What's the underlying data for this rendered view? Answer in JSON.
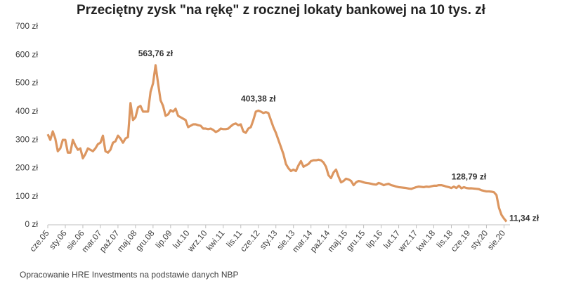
{
  "chart_data": {
    "type": "line",
    "title": "Przeciętny zysk \"na rękę\" z rocznej lokaty bankowej na 10 tys. zł",
    "source": "Opracowanie HRE Investments na podstawie danych NBP",
    "color": "#dc9660",
    "categories": [
      "cze.05",
      null,
      null,
      null,
      null,
      null,
      null,
      "sty.06",
      null,
      null,
      null,
      null,
      null,
      null,
      "sie.06",
      null,
      null,
      null,
      null,
      null,
      null,
      "mar.07",
      null,
      null,
      null,
      null,
      null,
      null,
      "paź.07",
      null,
      null,
      null,
      null,
      null,
      null,
      "maj.08",
      null,
      null,
      null,
      null,
      null,
      null,
      "gru.08",
      null,
      null,
      null,
      null,
      null,
      null,
      "lip.09",
      null,
      null,
      null,
      null,
      null,
      null,
      "lut.10",
      null,
      null,
      null,
      null,
      null,
      null,
      "wrz.10",
      null,
      null,
      null,
      null,
      null,
      null,
      "kwi.11",
      null,
      null,
      null,
      null,
      null,
      null,
      "lis.11",
      null,
      null,
      null,
      null,
      null,
      null,
      "cze.12",
      null,
      null,
      null,
      null,
      null,
      null,
      "sty.13",
      null,
      null,
      null,
      null,
      null,
      null,
      "sie.13",
      null,
      null,
      null,
      null,
      null,
      null,
      "mar.14",
      null,
      null,
      null,
      null,
      null,
      null,
      "paź.14",
      null,
      null,
      null,
      null,
      null,
      null,
      "maj.15",
      null,
      null,
      null,
      null,
      null,
      null,
      "gru.15",
      null,
      null,
      null,
      null,
      null,
      null,
      "lip.16",
      null,
      null,
      null,
      null,
      null,
      null,
      "lut.17",
      null,
      null,
      null,
      null,
      null,
      null,
      "wrz.17",
      null,
      null,
      null,
      null,
      null,
      null,
      "kwi.18",
      null,
      null,
      null,
      null,
      null,
      null,
      "lis.18",
      null,
      null,
      null,
      null,
      null,
      null,
      "cze.19",
      null,
      null,
      null,
      null,
      null,
      null,
      "sty.20",
      null,
      null,
      null,
      null,
      null,
      null,
      "sie.20",
      null
    ],
    "values": [
      320,
      300,
      330,
      305,
      260,
      270,
      300,
      300,
      255,
      255,
      300,
      280,
      265,
      270,
      235,
      250,
      270,
      265,
      260,
      270,
      285,
      290,
      315,
      260,
      255,
      265,
      290,
      295,
      315,
      305,
      290,
      305,
      310,
      430,
      370,
      380,
      415,
      420,
      400,
      400,
      400,
      470,
      500,
      563.76,
      500,
      440,
      420,
      385,
      390,
      405,
      400,
      410,
      385,
      380,
      375,
      370,
      345,
      350,
      355,
      355,
      352,
      350,
      340,
      340,
      338,
      340,
      335,
      328,
      332,
      340,
      338,
      338,
      340,
      348,
      355,
      358,
      352,
      355,
      330,
      325,
      340,
      345,
      370,
      400,
      403.38,
      400,
      395,
      398,
      395,
      370,
      345,
      325,
      300,
      275,
      250,
      215,
      200,
      190,
      195,
      190,
      210,
      225,
      205,
      210,
      215,
      225,
      228,
      228,
      230,
      228,
      220,
      205,
      175,
      165,
      185,
      195,
      170,
      150,
      155,
      163,
      160,
      155,
      140,
      150,
      155,
      153,
      150,
      148,
      147,
      145,
      143,
      142,
      148,
      145,
      140,
      143,
      145,
      140,
      138,
      135,
      133,
      132,
      131,
      130,
      128,
      127,
      130,
      133,
      135,
      134,
      133,
      135,
      134,
      136,
      138,
      138,
      140,
      140,
      138,
      135,
      133,
      130,
      135,
      130,
      138,
      129,
      133,
      130,
      128.79,
      129,
      128,
      127,
      126,
      122,
      120,
      118,
      118,
      117,
      115,
      105,
      60,
      35,
      22,
      11.34
    ],
    "value_labels": [
      null,
      null,
      null,
      null,
      null,
      null,
      null,
      null,
      null,
      null,
      null,
      null,
      null,
      null,
      null,
      null,
      null,
      null,
      null,
      null,
      null,
      null,
      null,
      null,
      null,
      null,
      null,
      null,
      null,
      null,
      null,
      null,
      null,
      null,
      null,
      null,
      null,
      null,
      null,
      null,
      null,
      null,
      null,
      "563,76 zł",
      null,
      null,
      null,
      null,
      null,
      null,
      null,
      null,
      null,
      null,
      null,
      null,
      null,
      null,
      null,
      null,
      null,
      null,
      null,
      null,
      null,
      null,
      null,
      null,
      null,
      null,
      null,
      null,
      null,
      null,
      null,
      null,
      null,
      null,
      null,
      null,
      null,
      null,
      null,
      null,
      "403,38 zł",
      null,
      null,
      null,
      null,
      null,
      null,
      null,
      null,
      null,
      null,
      null,
      null,
      null,
      null,
      null,
      null,
      null,
      null,
      null,
      null,
      null,
      null,
      null,
      null,
      null,
      null,
      null,
      null,
      null,
      null,
      null,
      null,
      null,
      null,
      null,
      null,
      null,
      null,
      null,
      null,
      null,
      null,
      null,
      null,
      null,
      null,
      null,
      null,
      null,
      null,
      null,
      null,
      null,
      null,
      null,
      null,
      null,
      null,
      null,
      null,
      null,
      null,
      null,
      null,
      null,
      null,
      null,
      null,
      null,
      null,
      null,
      null,
      null,
      null,
      null,
      null,
      null,
      null,
      null,
      null,
      null,
      null,
      null,
      "128,79 zł",
      null,
      null,
      null,
      null,
      null,
      null,
      null,
      null,
      null,
      null,
      null,
      null,
      null,
      null,
      "11,34 zł"
    ],
    "ylim": [
      0,
      700
    ],
    "yticks": [
      {
        "value": 0,
        "label": "0 zł"
      },
      {
        "value": 100,
        "label": "100 zł"
      },
      {
        "value": 200,
        "label": "200 zł"
      },
      {
        "value": 300,
        "label": "300 zł"
      },
      {
        "value": 400,
        "label": "400 zł"
      },
      {
        "value": 500,
        "label": "500 zł"
      },
      {
        "value": 600,
        "label": "600 zł"
      },
      {
        "value": 700,
        "label": "700 zł"
      }
    ],
    "grid": false
  }
}
